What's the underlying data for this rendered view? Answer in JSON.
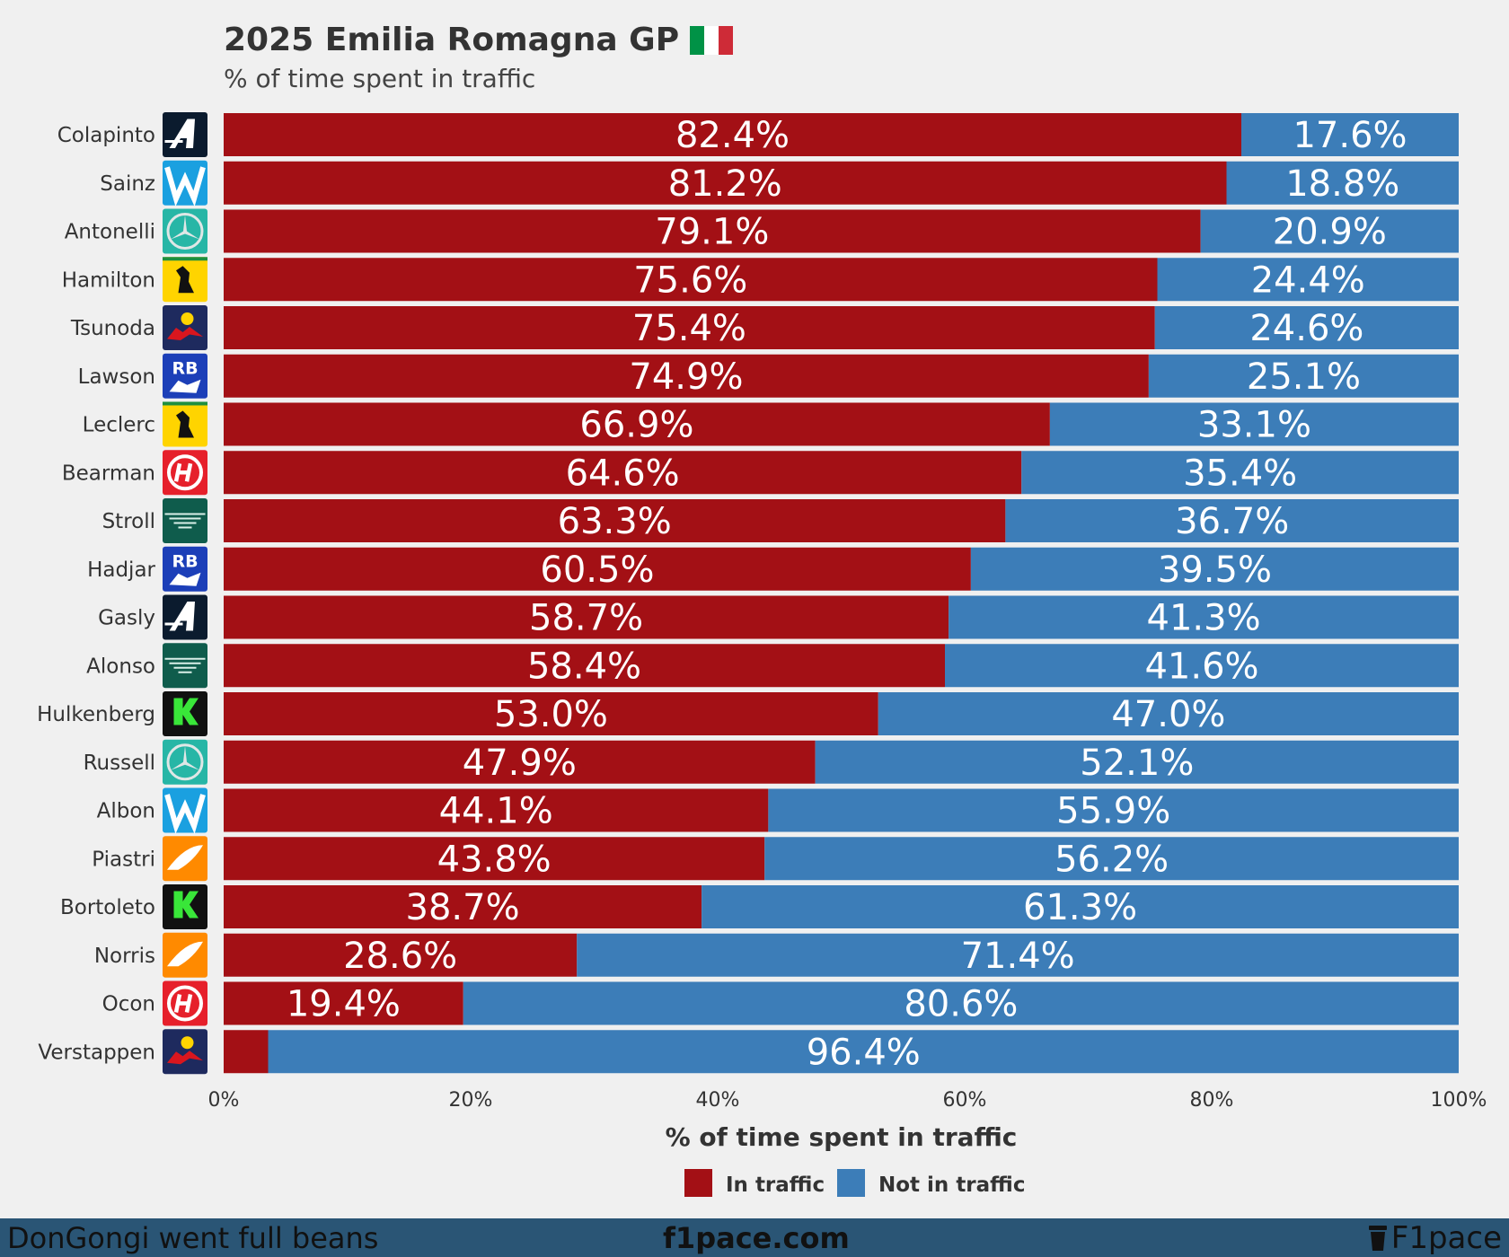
{
  "header": {
    "title": "2025 Emilia Romagna GP",
    "subtitle": "% of time spent in traffic"
  },
  "colors": {
    "in_traffic": "#a31015",
    "not_in_traffic": "#3c7db8",
    "background": "#f0f0f0",
    "footer": "#2a5575"
  },
  "chart_data": {
    "type": "bar",
    "orientation": "horizontal",
    "stacked": true,
    "title": "2025 Emilia Romagna GP",
    "subtitle": "% of time spent in traffic",
    "xlabel": "% of time spent in traffic",
    "ylabel": "",
    "xlim": [
      0,
      100
    ],
    "xticks": [
      "0%",
      "20%",
      "40%",
      "60%",
      "80%",
      "100%"
    ],
    "legend_position": "bottom-center",
    "categories": [
      "Colapinto",
      "Sainz",
      "Antonelli",
      "Hamilton",
      "Tsunoda",
      "Lawson",
      "Leclerc",
      "Bearman",
      "Stroll",
      "Hadjar",
      "Gasly",
      "Alonso",
      "Hulkenberg",
      "Russell",
      "Albon",
      "Piastri",
      "Bortoleto",
      "Norris",
      "Ocon",
      "Verstappen"
    ],
    "teams": [
      "alpine",
      "williams",
      "mercedes",
      "ferrari",
      "redbull",
      "racingbulls",
      "ferrari",
      "haas",
      "astonmartin",
      "racingbulls",
      "alpine",
      "astonmartin",
      "sauber",
      "mercedes",
      "williams",
      "mclaren",
      "sauber",
      "mclaren",
      "haas",
      "redbull"
    ],
    "series": [
      {
        "name": "In traffic",
        "values": [
          82.4,
          81.2,
          79.1,
          75.6,
          75.4,
          74.9,
          66.9,
          64.6,
          63.3,
          60.5,
          58.7,
          58.4,
          53.0,
          47.9,
          44.1,
          43.8,
          38.7,
          28.6,
          19.4,
          3.6
        ],
        "labels": [
          "82.4%",
          "81.2%",
          "79.1%",
          "75.6%",
          "75.4%",
          "74.9%",
          "66.9%",
          "64.6%",
          "63.3%",
          "60.5%",
          "58.7%",
          "58.4%",
          "53.0%",
          "47.9%",
          "44.1%",
          "43.8%",
          "38.7%",
          "28.6%",
          "19.4%",
          ""
        ]
      },
      {
        "name": "Not in traffic",
        "values": [
          17.6,
          18.8,
          20.9,
          24.4,
          24.6,
          25.1,
          33.1,
          35.4,
          36.7,
          39.5,
          41.3,
          41.6,
          47.0,
          52.1,
          55.9,
          56.2,
          61.3,
          71.4,
          80.6,
          96.4
        ],
        "labels": [
          "17.6%",
          "18.8%",
          "20.9%",
          "24.4%",
          "24.6%",
          "25.1%",
          "33.1%",
          "35.4%",
          "36.7%",
          "39.5%",
          "41.3%",
          "41.6%",
          "47.0%",
          "52.1%",
          "55.9%",
          "56.2%",
          "61.3%",
          "71.4%",
          "80.6%",
          "96.4%"
        ]
      }
    ],
    "legend": [
      "In traffic",
      "Not in traffic"
    ]
  },
  "footer": {
    "left": "DonGongi went full beans",
    "center": "f1pace.com",
    "brand": "F1pace"
  }
}
